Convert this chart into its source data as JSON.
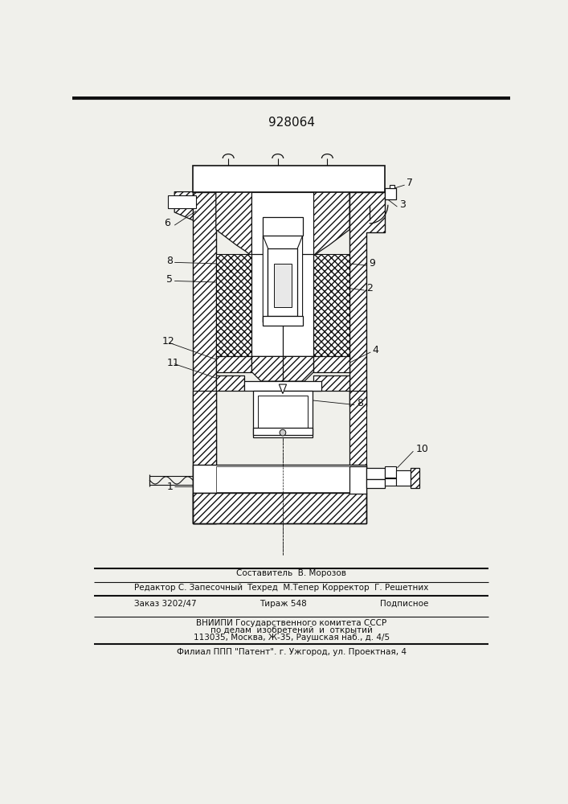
{
  "patent_number": "928064",
  "bg_color": "#f0f0eb",
  "line_color": "#111111",
  "title_fontsize": 12,
  "footer": {
    "line1_left": "Редактор С. Запесочный",
    "line1_center_top": "Составитель  В. Морозов",
    "line1_center": "Техред  М.Тепер",
    "line1_right": "Корректор  Г. Решетних",
    "line2_left": "Заказ 3202/47",
    "line2_center": "Тираж 548",
    "line2_right": "Подписное",
    "line3": "ВНИИПИ Государственного комитета СССР",
    "line4": "по делам  изобретений  и  открытий",
    "line5": "113035, Москва, Ж-35, Раушская наб., д. 4/5",
    "line6": "Филиал ППП \"Патент\". г. Ужгород, ул. Проектная, 4"
  }
}
